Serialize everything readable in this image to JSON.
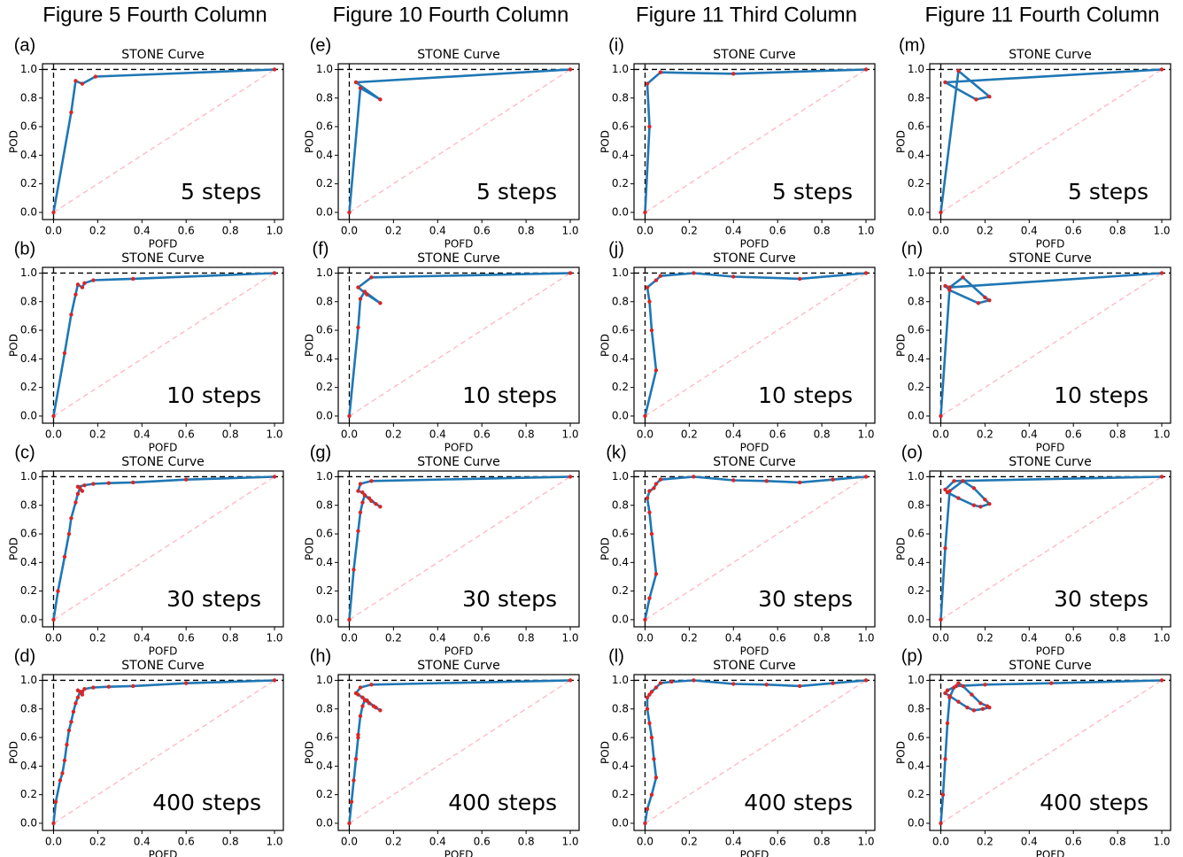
{
  "column_titles": [
    "Figure 5 Fourth Column",
    "Figure 10 Fourth Column",
    "Figure 11 Third Column",
    "Figure 11 Fourth Column"
  ],
  "chart_data": [
    {
      "type": "line",
      "panel": "(a)",
      "title": "STONE Curve",
      "x_label": "POFD",
      "y_label": "POD",
      "annotation": "5 steps",
      "color": "#1f77b4",
      "marker_color": "#d62728",
      "x": [
        0,
        0.08,
        0.1,
        0.13,
        0.19,
        1
      ],
      "values": [
        0,
        0.7,
        0.92,
        0.9,
        0.95,
        1
      ],
      "xlim": [
        -0.05,
        1.04
      ],
      "ylim": [
        -0.05,
        1.04
      ],
      "xticks": [
        {
          "value": 0,
          "label": "0.0"
        },
        0.2,
        0.4,
        0.6,
        0.8,
        {
          "value": 1,
          "label": "1.0"
        }
      ],
      "yticks": [
        {
          "value": 0,
          "label": "0.0"
        },
        0.2,
        0.4,
        0.6,
        0.8,
        {
          "value": 1,
          "label": "1.0"
        }
      ]
    },
    {
      "type": "line",
      "panel": "(b)",
      "title": "STONE Curve",
      "x_label": "POFD",
      "y_label": "POD",
      "annotation": "10 steps",
      "color": "#1f77b4",
      "marker_color": "#d62728",
      "x": [
        0,
        0.05,
        0.08,
        0.1,
        0.11,
        0.13,
        0.14,
        0.18,
        0.36,
        1
      ],
      "values": [
        0,
        0.44,
        0.71,
        0.85,
        0.92,
        0.9,
        0.93,
        0.95,
        0.96,
        1
      ],
      "xlim": [
        -0.05,
        1.04
      ],
      "ylim": [
        -0.05,
        1.04
      ],
      "xticks": [
        {
          "value": 0,
          "label": "0.0"
        },
        0.2,
        0.4,
        0.6,
        0.8,
        {
          "value": 1,
          "label": "1.0"
        }
      ],
      "yticks": [
        {
          "value": 0,
          "label": "0.0"
        },
        0.2,
        0.4,
        0.6,
        0.8,
        {
          "value": 1,
          "label": "1.0"
        }
      ]
    },
    {
      "type": "line",
      "panel": "(c)",
      "title": "STONE Curve",
      "x_label": "POFD",
      "y_label": "POD",
      "annotation": "30 steps",
      "color": "#1f77b4",
      "marker_color": "#d62728",
      "x": [
        0,
        0.02,
        0.05,
        0.07,
        0.08,
        0.1,
        0.11,
        0.12,
        0.13,
        0.11,
        0.14,
        0.18,
        0.25,
        0.36,
        0.6,
        1
      ],
      "values": [
        0,
        0.2,
        0.44,
        0.6,
        0.71,
        0.82,
        0.88,
        0.92,
        0.9,
        0.93,
        0.94,
        0.95,
        0.955,
        0.96,
        0.98,
        1
      ],
      "xlim": [
        -0.05,
        1.04
      ],
      "ylim": [
        -0.05,
        1.04
      ],
      "xticks": [
        {
          "value": 0,
          "label": "0.0"
        },
        0.2,
        0.4,
        0.6,
        0.8,
        {
          "value": 1,
          "label": "1.0"
        }
      ],
      "yticks": [
        {
          "value": 0,
          "label": "0.0"
        },
        0.2,
        0.4,
        0.6,
        0.8,
        {
          "value": 1,
          "label": "1.0"
        }
      ]
    },
    {
      "type": "line",
      "panel": "(d)",
      "title": "STONE Curve",
      "x_label": "POFD",
      "y_label": "POD",
      "annotation": "400 steps",
      "color": "#1f77b4",
      "marker_color": "#d62728",
      "x": [
        0,
        0.01,
        0.03,
        0.04,
        0.05,
        0.06,
        0.07,
        0.08,
        0.09,
        0.1,
        0.11,
        0.12,
        0.13,
        0.11,
        0.13,
        0.14,
        0.18,
        0.25,
        0.36,
        0.6,
        1
      ],
      "values": [
        0,
        0.15,
        0.3,
        0.35,
        0.44,
        0.55,
        0.65,
        0.71,
        0.78,
        0.84,
        0.88,
        0.92,
        0.9,
        0.93,
        0.92,
        0.94,
        0.95,
        0.955,
        0.96,
        0.98,
        1
      ],
      "xlim": [
        -0.05,
        1.04
      ],
      "ylim": [
        -0.05,
        1.04
      ],
      "xticks": [
        {
          "value": 0,
          "label": "0.0"
        },
        0.2,
        0.4,
        0.6,
        0.8,
        {
          "value": 1,
          "label": "1.0"
        }
      ],
      "yticks": [
        {
          "value": 0,
          "label": "0.0"
        },
        0.2,
        0.4,
        0.6,
        0.8,
        {
          "value": 1,
          "label": "1.0"
        }
      ]
    },
    {
      "type": "line",
      "panel": "(e)",
      "title": "STONE Curve",
      "x_label": "POFD",
      "y_label": "POD",
      "annotation": "5 steps",
      "color": "#1f77b4",
      "marker_color": "#d62728",
      "x": [
        0,
        0.05,
        0.14,
        0.03,
        1
      ],
      "values": [
        0,
        0.87,
        0.79,
        0.91,
        1
      ],
      "xlim": [
        -0.05,
        1.04
      ],
      "ylim": [
        -0.05,
        1.04
      ],
      "xticks": [
        {
          "value": 0,
          "label": "0.0"
        },
        0.2,
        0.4,
        0.6,
        0.8,
        {
          "value": 1,
          "label": "1.0"
        }
      ],
      "yticks": [
        {
          "value": 0,
          "label": "0.0"
        },
        0.2,
        0.4,
        0.6,
        0.8,
        {
          "value": 1,
          "label": "1.0"
        }
      ]
    },
    {
      "type": "line",
      "panel": "(f)",
      "title": "STONE Curve",
      "x_label": "POFD",
      "y_label": "POD",
      "annotation": "10 steps",
      "color": "#1f77b4",
      "marker_color": "#d62728",
      "x": [
        0,
        0.04,
        0.05,
        0.07,
        0.14,
        0.08,
        0.04,
        0.1,
        1
      ],
      "values": [
        0,
        0.62,
        0.82,
        0.87,
        0.79,
        0.85,
        0.9,
        0.97,
        1
      ],
      "xlim": [
        -0.05,
        1.04
      ],
      "ylim": [
        -0.05,
        1.04
      ],
      "xticks": [
        {
          "value": 0,
          "label": "0.0"
        },
        0.2,
        0.4,
        0.6,
        0.8,
        {
          "value": 1,
          "label": "1.0"
        }
      ],
      "yticks": [
        {
          "value": 0,
          "label": "0.0"
        },
        0.2,
        0.4,
        0.6,
        0.8,
        {
          "value": 1,
          "label": "1.0"
        }
      ]
    },
    {
      "type": "line",
      "panel": "(g)",
      "title": "STONE Curve",
      "x_label": "POFD",
      "y_label": "POD",
      "annotation": "30 steps",
      "color": "#1f77b4",
      "marker_color": "#d62728",
      "x": [
        0,
        0.02,
        0.04,
        0.05,
        0.06,
        0.07,
        0.09,
        0.12,
        0.14,
        0.1,
        0.07,
        0.06,
        0.04,
        0.05,
        0.1,
        1
      ],
      "values": [
        0,
        0.35,
        0.62,
        0.75,
        0.82,
        0.87,
        0.85,
        0.81,
        0.79,
        0.83,
        0.87,
        0.89,
        0.9,
        0.95,
        0.97,
        1
      ],
      "xlim": [
        -0.05,
        1.04
      ],
      "ylim": [
        -0.05,
        1.04
      ],
      "xticks": [
        {
          "value": 0,
          "label": "0.0"
        },
        0.2,
        0.4,
        0.6,
        0.8,
        {
          "value": 1,
          "label": "1.0"
        }
      ],
      "yticks": [
        {
          "value": 0,
          "label": "0.0"
        },
        0.2,
        0.4,
        0.6,
        0.8,
        {
          "value": 1,
          "label": "1.0"
        }
      ]
    },
    {
      "type": "line",
      "panel": "(h)",
      "title": "STONE Curve",
      "x_label": "POFD",
      "y_label": "POD",
      "annotation": "400 steps",
      "color": "#1f77b4",
      "marker_color": "#d62728",
      "x": [
        0,
        0.01,
        0.02,
        0.03,
        0.04,
        0.04,
        0.05,
        0.06,
        0.07,
        0.09,
        0.12,
        0.14,
        0.11,
        0.08,
        0.06,
        0.04,
        0.03,
        0.05,
        0.1,
        1
      ],
      "values": [
        0,
        0.15,
        0.3,
        0.45,
        0.6,
        0.62,
        0.75,
        0.82,
        0.86,
        0.84,
        0.81,
        0.79,
        0.82,
        0.86,
        0.88,
        0.9,
        0.91,
        0.95,
        0.97,
        1
      ],
      "xlim": [
        -0.05,
        1.04
      ],
      "ylim": [
        -0.05,
        1.04
      ],
      "xticks": [
        {
          "value": 0,
          "label": "0.0"
        },
        0.2,
        0.4,
        0.6,
        0.8,
        {
          "value": 1,
          "label": "1.0"
        }
      ],
      "yticks": [
        {
          "value": 0,
          "label": "0.0"
        },
        0.2,
        0.4,
        0.6,
        0.8,
        {
          "value": 1,
          "label": "1.0"
        }
      ]
    },
    {
      "type": "line",
      "panel": "(i)",
      "title": "STONE Curve",
      "x_label": "POFD",
      "y_label": "POD",
      "annotation": "5 steps",
      "color": "#1f77b4",
      "marker_color": "#d62728",
      "x": [
        0,
        0.02,
        0.01,
        0.07,
        0.4,
        1
      ],
      "values": [
        0,
        0.6,
        0.9,
        0.98,
        0.97,
        1
      ],
      "xlim": [
        -0.05,
        1.04
      ],
      "ylim": [
        -0.05,
        1.04
      ],
      "xticks": [
        {
          "value": 0,
          "label": "0.0"
        },
        0.2,
        0.4,
        0.6,
        0.8,
        {
          "value": 1,
          "label": "1.0"
        }
      ],
      "yticks": [
        {
          "value": 0,
          "label": "0.0"
        },
        0.2,
        0.4,
        0.6,
        0.8,
        {
          "value": 1,
          "label": "1.0"
        }
      ]
    },
    {
      "type": "line",
      "panel": "(j)",
      "title": "STONE Curve",
      "x_label": "POFD",
      "y_label": "POD",
      "annotation": "10 steps",
      "color": "#1f77b4",
      "marker_color": "#d62728",
      "x": [
        0,
        0.05,
        0.03,
        0.02,
        0.01,
        0.05,
        0.07,
        0.22,
        0.4,
        0.7,
        1
      ],
      "values": [
        0,
        0.32,
        0.6,
        0.8,
        0.9,
        0.95,
        0.98,
        1,
        0.975,
        0.96,
        1
      ],
      "xlim": [
        -0.05,
        1.04
      ],
      "ylim": [
        -0.05,
        1.04
      ],
      "xticks": [
        {
          "value": 0,
          "label": "0.0"
        },
        0.2,
        0.4,
        0.6,
        0.8,
        {
          "value": 1,
          "label": "1.0"
        }
      ],
      "yticks": [
        {
          "value": 0,
          "label": "0.0"
        },
        0.2,
        0.4,
        0.6,
        0.8,
        {
          "value": 1,
          "label": "1.0"
        }
      ]
    },
    {
      "type": "line",
      "panel": "(k)",
      "title": "STONE Curve",
      "x_label": "POFD",
      "y_label": "POD",
      "annotation": "30 steps",
      "color": "#1f77b4",
      "marker_color": "#d62728",
      "x": [
        0,
        0.02,
        0.05,
        0.03,
        0.02,
        0.01,
        0.02,
        0.04,
        0.05,
        0.07,
        0.22,
        0.4,
        0.55,
        0.7,
        0.85,
        1
      ],
      "values": [
        0,
        0.15,
        0.32,
        0.6,
        0.75,
        0.85,
        0.9,
        0.92,
        0.95,
        0.98,
        1,
        0.975,
        0.97,
        0.96,
        0.98,
        1
      ],
      "xlim": [
        -0.05,
        1.04
      ],
      "ylim": [
        -0.05,
        1.04
      ],
      "xticks": [
        {
          "value": 0,
          "label": "0.0"
        },
        0.2,
        0.4,
        0.6,
        0.8,
        {
          "value": 1,
          "label": "1.0"
        }
      ],
      "yticks": [
        {
          "value": 0,
          "label": "0.0"
        },
        0.2,
        0.4,
        0.6,
        0.8,
        {
          "value": 1,
          "label": "1.0"
        }
      ]
    },
    {
      "type": "line",
      "panel": "(l)",
      "title": "STONE Curve",
      "x_label": "POFD",
      "y_label": "POD",
      "annotation": "400 steps",
      "color": "#1f77b4",
      "marker_color": "#d62728",
      "x": [
        0,
        0.01,
        0.03,
        0.05,
        0.04,
        0.03,
        0.02,
        0.01,
        0.01,
        0.02,
        0.03,
        0.05,
        0.07,
        0.12,
        0.22,
        0.4,
        0.55,
        0.7,
        0.85,
        1
      ],
      "values": [
        0,
        0.1,
        0.2,
        0.32,
        0.45,
        0.6,
        0.7,
        0.8,
        0.88,
        0.9,
        0.92,
        0.95,
        0.98,
        0.99,
        1,
        0.975,
        0.97,
        0.96,
        0.98,
        1
      ],
      "xlim": [
        -0.05,
        1.04
      ],
      "ylim": [
        -0.05,
        1.04
      ],
      "xticks": [
        {
          "value": 0,
          "label": "0.0"
        },
        0.2,
        0.4,
        0.6,
        0.8,
        {
          "value": 1,
          "label": "1.0"
        }
      ],
      "yticks": [
        {
          "value": 0,
          "label": "0.0"
        },
        0.2,
        0.4,
        0.6,
        0.8,
        {
          "value": 1,
          "label": "1.0"
        }
      ]
    },
    {
      "type": "line",
      "panel": "(m)",
      "title": "STONE Curve",
      "x_label": "POFD",
      "y_label": "POD",
      "annotation": "5 steps",
      "color": "#1f77b4",
      "marker_color": "#d62728",
      "x": [
        0,
        0.08,
        0.22,
        0.16,
        0.02,
        1
      ],
      "values": [
        0,
        0.99,
        0.81,
        0.79,
        0.91,
        1
      ],
      "xlim": [
        -0.05,
        1.04
      ],
      "ylim": [
        -0.05,
        1.04
      ],
      "xticks": [
        {
          "value": 0,
          "label": "0.0"
        },
        0.2,
        0.4,
        0.6,
        0.8,
        {
          "value": 1,
          "label": "1.0"
        }
      ],
      "yticks": [
        {
          "value": 0,
          "label": "0.0"
        },
        0.2,
        0.4,
        0.6,
        0.8,
        {
          "value": 1,
          "label": "1.0"
        }
      ]
    },
    {
      "type": "line",
      "panel": "(n)",
      "title": "STONE Curve",
      "x_label": "POFD",
      "y_label": "POD",
      "annotation": "10 steps",
      "color": "#1f77b4",
      "marker_color": "#d62728",
      "x": [
        0,
        0.04,
        0.1,
        0.2,
        0.22,
        0.17,
        0.04,
        0.02,
        0.04,
        1
      ],
      "values": [
        0,
        0.9,
        0.97,
        0.83,
        0.81,
        0.79,
        0.88,
        0.91,
        0.9,
        1
      ],
      "xlim": [
        -0.05,
        1.04
      ],
      "ylim": [
        -0.05,
        1.04
      ],
      "xticks": [
        {
          "value": 0,
          "label": "0.0"
        },
        0.2,
        0.4,
        0.6,
        0.8,
        {
          "value": 1,
          "label": "1.0"
        }
      ],
      "yticks": [
        {
          "value": 0,
          "label": "0.0"
        },
        0.2,
        0.4,
        0.6,
        0.8,
        {
          "value": 1,
          "label": "1.0"
        }
      ]
    },
    {
      "type": "line",
      "panel": "(o)",
      "title": "STONE Curve",
      "x_label": "POFD",
      "y_label": "POD",
      "annotation": "30 steps",
      "color": "#1f77b4",
      "marker_color": "#d62728",
      "x": [
        0,
        0.02,
        0.04,
        0.1,
        0.15,
        0.2,
        0.22,
        0.18,
        0.15,
        0.08,
        0.03,
        0.02,
        0.06,
        1
      ],
      "values": [
        0,
        0.5,
        0.9,
        0.97,
        0.92,
        0.84,
        0.81,
        0.79,
        0.8,
        0.85,
        0.89,
        0.91,
        0.97,
        1
      ],
      "xlim": [
        -0.05,
        1.04
      ],
      "ylim": [
        -0.05,
        1.04
      ],
      "xticks": [
        {
          "value": 0,
          "label": "0.0"
        },
        0.2,
        0.4,
        0.6,
        0.8,
        {
          "value": 1,
          "label": "1.0"
        }
      ],
      "yticks": [
        {
          "value": 0,
          "label": "0.0"
        },
        0.2,
        0.4,
        0.6,
        0.8,
        {
          "value": 1,
          "label": "1.0"
        }
      ]
    },
    {
      "type": "line",
      "panel": "(p)",
      "title": "STONE Curve",
      "x_label": "POFD",
      "y_label": "POD",
      "annotation": "400 steps",
      "color": "#1f77b4",
      "marker_color": "#d62728",
      "x": [
        0,
        0.01,
        0.02,
        0.03,
        0.04,
        0.06,
        0.08,
        0.1,
        0.14,
        0.18,
        0.21,
        0.22,
        0.19,
        0.15,
        0.12,
        0.08,
        0.04,
        0.02,
        0.03,
        0.07,
        0.2,
        0.5,
        1
      ],
      "values": [
        0,
        0.2,
        0.45,
        0.7,
        0.88,
        0.95,
        0.98,
        0.96,
        0.9,
        0.84,
        0.82,
        0.81,
        0.8,
        0.79,
        0.81,
        0.85,
        0.89,
        0.91,
        0.93,
        0.96,
        0.97,
        0.98,
        1
      ],
      "xlim": [
        -0.05,
        1.04
      ],
      "ylim": [
        -0.05,
        1.04
      ],
      "xticks": [
        {
          "value": 0,
          "label": "0.0"
        },
        0.2,
        0.4,
        0.6,
        0.8,
        {
          "value": 1,
          "label": "1.0"
        }
      ],
      "yticks": [
        {
          "value": 0,
          "label": "0.0"
        },
        0.2,
        0.4,
        0.6,
        0.8,
        {
          "value": 1,
          "label": "1.0"
        }
      ]
    }
  ]
}
